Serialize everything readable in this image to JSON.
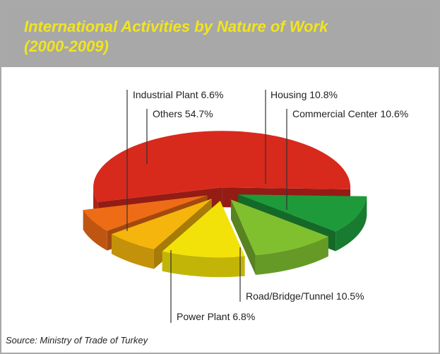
{
  "chart_data": {
    "type": "pie3d",
    "title": "International Activities by Nature of  Work (2000-2009)",
    "source": "Source: Ministry of Trade of Turkey",
    "categories": [
      "Others",
      "Housing",
      "Commercial Center",
      "Road/Bridge/Tunnel",
      "Power Plant",
      "Industrial Plant"
    ],
    "values": [
      54.7,
      10.8,
      10.6,
      10.5,
      6.8,
      6.6
    ],
    "value_labels": [
      "54.7%",
      "10.8%",
      "10.6%",
      "10.5%",
      "6.8%",
      "6.6%"
    ],
    "colors": [
      "#d8291d",
      "#1e9a3b",
      "#80c02f",
      "#f3e20a",
      "#f5b50c",
      "#ee6c16"
    ]
  }
}
